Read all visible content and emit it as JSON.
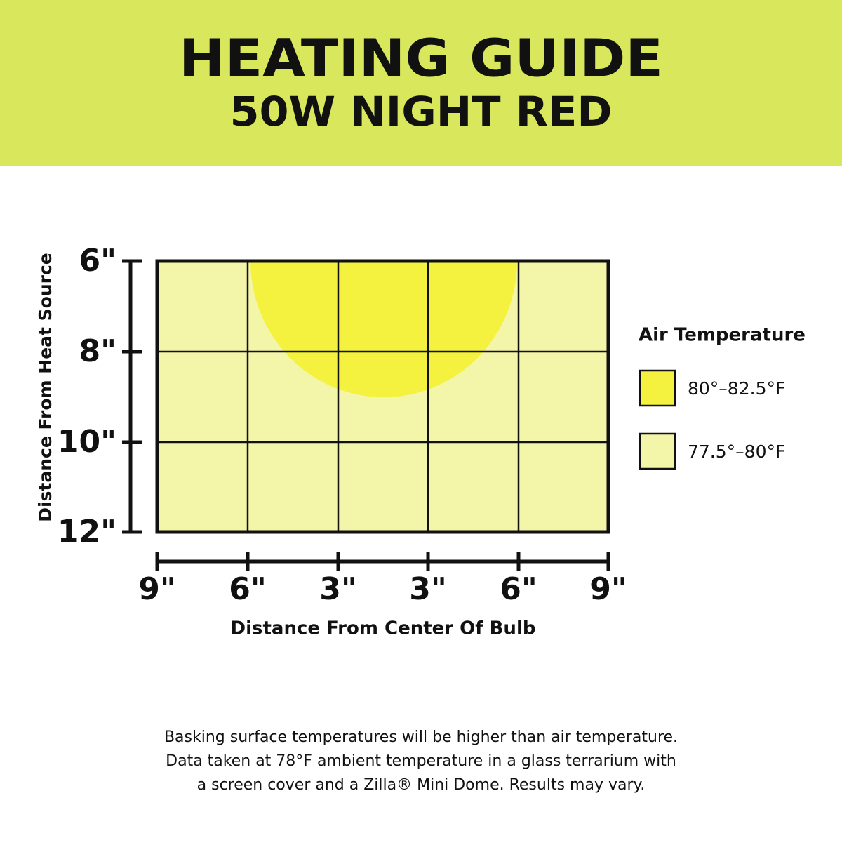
{
  "header": {
    "title": "HEATING GUIDE",
    "subtitle": "50W NIGHT RED"
  },
  "chart": {
    "y_label": "Distance From Heat Source",
    "y_ticks": [
      "6\"",
      "8\"",
      "10\"",
      "12\""
    ],
    "x_ticks": [
      "9\"",
      "6\"",
      "3\"",
      "3\"",
      "6\"",
      "9\""
    ],
    "x_label": "Distance From Center Of Bulb"
  },
  "legend": {
    "title": "Air Temperature",
    "items": [
      {
        "label": "80°–82.5°F",
        "color": "#f4f23f"
      },
      {
        "label": "77.5°–80°F",
        "color": "#f3f5a8"
      }
    ]
  },
  "footnote": [
    "Basking surface temperatures will be higher than air temperature.",
    "Data taken at 78°F ambient temperature in a glass terrarium with",
    "a screen cover and a Zilla® Mini Dome. Results may vary."
  ]
}
